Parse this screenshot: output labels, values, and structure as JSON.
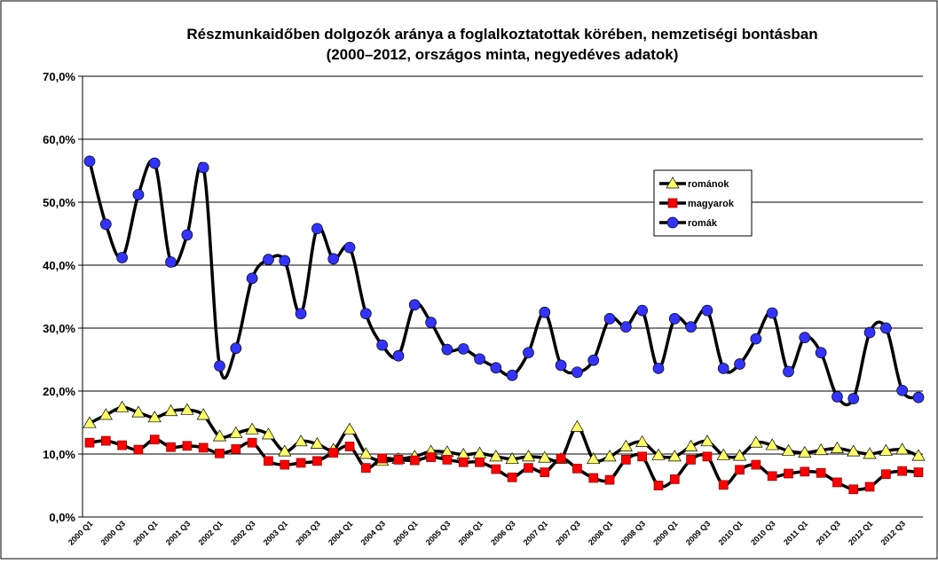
{
  "chart_data": {
    "type": "line",
    "title": "Részmunkaidőben dolgozók aránya a foglalkoztatottak körében, nemzetiségi bontásban",
    "subtitle": "(2000–2012, országos minta, negyedéves adatok)",
    "categories": [
      "2000 Q1",
      null,
      "2000 Q3",
      null,
      "2001 Q1",
      null,
      "2001 Q3",
      null,
      "2002 Q1",
      null,
      "2002 Q3",
      null,
      "2003 Q1",
      null,
      "2003 Q3",
      null,
      "2004 Q1",
      null,
      "2004 Q3",
      null,
      "2005 Q1",
      null,
      "2005 Q3",
      null,
      "2006 Q1",
      null,
      "2006 Q3",
      null,
      "2007 Q1",
      null,
      "2007 Q3",
      null,
      "2008 Q1",
      null,
      "2008 Q3",
      null,
      "2009 Q1",
      null,
      "2009 Q3",
      null,
      "2010 Q1",
      null,
      "2010 Q3",
      null,
      "2011 Q1",
      null,
      "2011 Q3",
      null,
      "2012 Q1",
      null,
      "2012 Q3",
      null
    ],
    "series": [
      {
        "name": "románok",
        "color": "#ffff66",
        "marker": "triangle",
        "values": [
          14.9,
          16.2,
          17.4,
          16.6,
          15.8,
          16.8,
          17.0,
          16.2,
          12.8,
          13.3,
          13.9,
          13.1,
          10.4,
          12.0,
          11.6,
          10.7,
          13.9,
          10.0,
          8.9,
          9.2,
          9.6,
          10.4,
          10.3,
          9.9,
          10.1,
          9.6,
          9.2,
          9.6,
          9.4,
          9.2,
          14.3,
          9.2,
          9.6,
          11.2,
          11.9,
          9.8,
          9.6,
          11.2,
          12.0,
          9.8,
          9.7,
          11.8,
          11.4,
          10.5,
          10.2,
          10.6,
          10.9,
          10.4,
          10.0,
          10.5,
          10.7,
          9.7
        ]
      },
      {
        "name": "magyarok",
        "color": "#ff0000",
        "marker": "square",
        "values": [
          11.8,
          12.1,
          11.4,
          10.7,
          12.3,
          11.1,
          11.3,
          11.0,
          10.1,
          10.8,
          11.8,
          8.9,
          8.3,
          8.6,
          8.9,
          10.2,
          11.2,
          7.8,
          9.3,
          9.1,
          9.0,
          9.5,
          9.1,
          8.7,
          8.7,
          7.6,
          6.3,
          7.8,
          7.1,
          9.3,
          7.7,
          6.2,
          5.9,
          9.1,
          9.6,
          5.0,
          6.0,
          9.1,
          9.6,
          5.1,
          7.5,
          8.3,
          6.5,
          6.9,
          7.2,
          7.0,
          5.5,
          4.4,
          4.8,
          6.8,
          7.3,
          7.1
        ]
      },
      {
        "name": "romák",
        "color": "#3333ff",
        "marker": "circle",
        "values": [
          56.5,
          46.5,
          41.2,
          51.2,
          56.2,
          40.5,
          44.8,
          55.5,
          24.0,
          26.8,
          37.9,
          40.9,
          40.7,
          32.3,
          45.8,
          41.0,
          42.8,
          32.3,
          27.3,
          25.6,
          33.7,
          30.9,
          26.6,
          26.7,
          25.1,
          23.7,
          22.5,
          26.1,
          32.5,
          24.1,
          23.0,
          24.9,
          31.5,
          30.2,
          32.8,
          23.6,
          31.5,
          30.2,
          32.8,
          23.6,
          24.3,
          28.3,
          32.4,
          23.1,
          28.5,
          26.1,
          19.1,
          18.8,
          29.3,
          30.0,
          20.1,
          19.0
        ]
      }
    ],
    "line_color": "#000000",
    "ylim": [
      0,
      70
    ],
    "yticks": [
      {
        "value": 0,
        "label": "0,0%"
      },
      {
        "value": 10,
        "label": "10,0%"
      },
      {
        "value": 20,
        "label": "20,0%"
      },
      {
        "value": 30,
        "label": "30,0%"
      },
      {
        "value": 40,
        "label": "40,0%"
      },
      {
        "value": 50,
        "label": "50,0%"
      },
      {
        "value": 60,
        "label": "60,0%"
      },
      {
        "value": 70,
        "label": "70,0%"
      }
    ],
    "grid": true,
    "legend": "upper right"
  }
}
